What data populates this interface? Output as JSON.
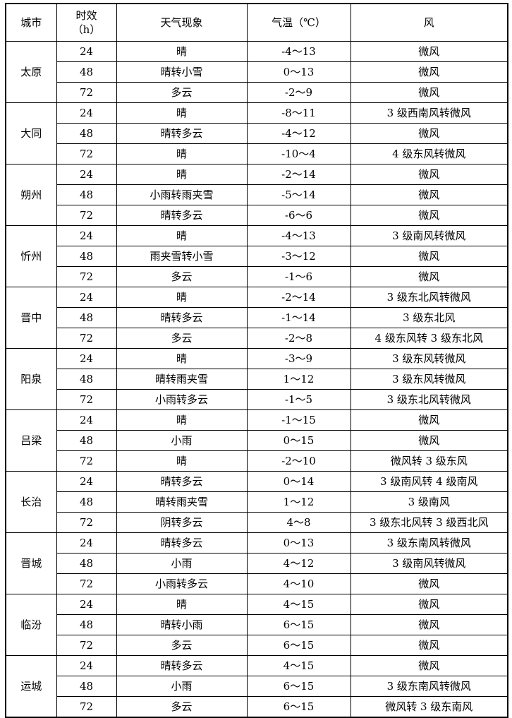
{
  "table": {
    "headers": {
      "city": "城市",
      "period_line1": "时效",
      "period_line2": "（h）",
      "weather": "天气现象",
      "temp": "气温（℃）",
      "wind": "风"
    },
    "cities": [
      {
        "name": "太原",
        "rows": [
          {
            "period": "24",
            "weather": "晴",
            "temp": "-4～13",
            "wind": "微风"
          },
          {
            "period": "48",
            "weather": "晴转小雪",
            "temp": "0～13",
            "wind": "微风"
          },
          {
            "period": "72",
            "weather": "多云",
            "temp": "-2～9",
            "wind": "微风"
          }
        ]
      },
      {
        "name": "大同",
        "rows": [
          {
            "period": "24",
            "weather": "晴",
            "temp": "-8～11",
            "wind": "3 级西南风转微风"
          },
          {
            "period": "48",
            "weather": "晴转多云",
            "temp": "-4～12",
            "wind": "微风"
          },
          {
            "period": "72",
            "weather": "晴",
            "temp": "-10～4",
            "wind": "4 级东风转微风"
          }
        ]
      },
      {
        "name": "朔州",
        "rows": [
          {
            "period": "24",
            "weather": "晴",
            "temp": "-2～14",
            "wind": "微风"
          },
          {
            "period": "48",
            "weather": "小雨转雨夹雪",
            "temp": "-5～14",
            "wind": "微风"
          },
          {
            "period": "72",
            "weather": "晴转多云",
            "temp": "-6～6",
            "wind": "微风"
          }
        ]
      },
      {
        "name": "忻州",
        "rows": [
          {
            "period": "24",
            "weather": "晴",
            "temp": "-4～13",
            "wind": "3 级南风转微风"
          },
          {
            "period": "48",
            "weather": "雨夹雪转小雪",
            "temp": "-3～12",
            "wind": "微风"
          },
          {
            "period": "72",
            "weather": "多云",
            "temp": "-1～6",
            "wind": "微风"
          }
        ]
      },
      {
        "name": "晋中",
        "rows": [
          {
            "period": "24",
            "weather": "晴",
            "temp": "-2～14",
            "wind": "3 级东北风转微风"
          },
          {
            "period": "48",
            "weather": "晴转多云",
            "temp": "-1～14",
            "wind": "3 级东北风"
          },
          {
            "period": "72",
            "weather": "多云",
            "temp": "-2～8",
            "wind": "4 级东风转 3 级东北风"
          }
        ]
      },
      {
        "name": "阳泉",
        "rows": [
          {
            "period": "24",
            "weather": "晴",
            "temp": "-3～9",
            "wind": "3 级东风转微风"
          },
          {
            "period": "48",
            "weather": "晴转雨夹雪",
            "temp": "1～12",
            "wind": "3 级东风转微风"
          },
          {
            "period": "72",
            "weather": "小雨转多云",
            "temp": "-1～5",
            "wind": "3 级东北风转微风"
          }
        ]
      },
      {
        "name": "吕梁",
        "rows": [
          {
            "period": "24",
            "weather": "晴",
            "temp": "-1～15",
            "wind": "微风"
          },
          {
            "period": "48",
            "weather": "小雨",
            "temp": "0～15",
            "wind": "微风"
          },
          {
            "period": "72",
            "weather": "晴",
            "temp": "-2～10",
            "wind": "微风转 3 级东风"
          }
        ]
      },
      {
        "name": "长治",
        "rows": [
          {
            "period": "24",
            "weather": "晴转多云",
            "temp": "0～14",
            "wind": "3 级南风转 4 级南风"
          },
          {
            "period": "48",
            "weather": "晴转雨夹雪",
            "temp": "1～12",
            "wind": "3 级南风"
          },
          {
            "period": "72",
            "weather": "阴转多云",
            "temp": "4～8",
            "wind": "3 级东北风转 3 级西北风"
          }
        ]
      },
      {
        "name": "晋城",
        "rows": [
          {
            "period": "24",
            "weather": "晴转多云",
            "temp": "0～13",
            "wind": "3 级东南风转微风"
          },
          {
            "period": "48",
            "weather": "小雨",
            "temp": "4～12",
            "wind": "3 级南风转微风"
          },
          {
            "period": "72",
            "weather": "小雨转多云",
            "temp": "4～10",
            "wind": "微风"
          }
        ]
      },
      {
        "name": "临汾",
        "rows": [
          {
            "period": "24",
            "weather": "晴",
            "temp": "4～15",
            "wind": "微风"
          },
          {
            "period": "48",
            "weather": "晴转小雨",
            "temp": "6～15",
            "wind": "微风"
          },
          {
            "period": "72",
            "weather": "多云",
            "temp": "6～15",
            "wind": "微风"
          }
        ]
      },
      {
        "name": "运城",
        "rows": [
          {
            "period": "24",
            "weather": "晴转多云",
            "temp": "4～15",
            "wind": "微风"
          },
          {
            "period": "48",
            "weather": "小雨",
            "temp": "6～15",
            "wind": "3 级东南风转微风"
          },
          {
            "period": "72",
            "weather": "多云",
            "temp": "6～15",
            "wind": "微风转 3 级东南风"
          }
        ]
      }
    ]
  }
}
